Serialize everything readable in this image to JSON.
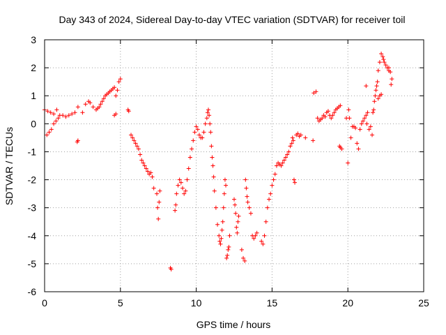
{
  "chart_data": {
    "type": "scatter",
    "title": "Day 343 of 2024, Sidereal Day-to-day VTEC variation (SDTVAR) for receiver toil",
    "xlabel": "GPS time / hours",
    "ylabel": "SDTVAR / TECUs",
    "xlim": [
      0,
      25
    ],
    "ylim": [
      -6,
      3
    ],
    "xticks": [
      "0",
      "5",
      "10",
      "15",
      "20",
      "25"
    ],
    "xtick_values": [
      0,
      5,
      10,
      15,
      20,
      25
    ],
    "yticks": [
      "-6",
      "-5",
      "-4",
      "-3",
      "-2",
      "-1",
      "0",
      "1",
      "2",
      "3"
    ],
    "ytick_values": [
      -6,
      -5,
      -4,
      -3,
      -2,
      -1,
      0,
      1,
      2,
      3
    ],
    "grid": true,
    "marker": "plus",
    "color": "#ff0000",
    "series": [
      {
        "name": "SDTVAR",
        "x": [
          0.0,
          0.2,
          0.4,
          0.6,
          0.8,
          0.15,
          0.3,
          0.45,
          0.6,
          0.75,
          0.9,
          1.0,
          1.2,
          1.4,
          1.6,
          1.8,
          2.0,
          2.2,
          2.5,
          2.7,
          2.9,
          3.0,
          3.2,
          3.4,
          3.5,
          3.6,
          3.7,
          3.8,
          3.9,
          4.0,
          4.1,
          4.2,
          4.3,
          4.4,
          4.5,
          4.6,
          4.7,
          4.8,
          4.9,
          5.0,
          4.6,
          4.7,
          2.2,
          2.15,
          5.5,
          5.55,
          5.7,
          5.8,
          5.9,
          6.0,
          6.1,
          6.2,
          6.3,
          6.4,
          6.5,
          6.6,
          6.7,
          6.8,
          6.9,
          7.0,
          7.1,
          7.2,
          7.4,
          7.45,
          7.5,
          7.55,
          7.6,
          8.3,
          8.35,
          8.6,
          8.65,
          8.7,
          8.8,
          8.9,
          9.0,
          9.1,
          9.2,
          9.3,
          9.4,
          9.5,
          9.6,
          9.7,
          9.8,
          9.9,
          10.0,
          10.1,
          10.2,
          10.3,
          10.4,
          10.5,
          10.6,
          10.7,
          10.75,
          10.8,
          10.85,
          10.9,
          10.95,
          11.0,
          11.05,
          11.1,
          11.15,
          11.2,
          11.3,
          11.4,
          11.5,
          11.55,
          11.6,
          11.65,
          11.7,
          11.75,
          11.8,
          11.85,
          11.9,
          11.95,
          12.0,
          12.05,
          12.1,
          12.15,
          12.2,
          12.5,
          12.55,
          12.6,
          12.65,
          12.7,
          12.75,
          12.8,
          13.0,
          13.1,
          13.2,
          13.25,
          13.3,
          13.35,
          13.4,
          13.5,
          13.6,
          13.7,
          13.8,
          13.9,
          14.0,
          14.3,
          14.4,
          14.5,
          14.6,
          14.7,
          14.8,
          14.9,
          15.0,
          15.1,
          15.2,
          15.3,
          15.4,
          15.5,
          15.6,
          15.7,
          15.8,
          15.9,
          16.0,
          16.1,
          16.2,
          16.3,
          16.4,
          16.35,
          16.45,
          16.5,
          16.6,
          16.7,
          16.8,
          16.9,
          17.2,
          17.7,
          17.75,
          17.9,
          18.0,
          18.1,
          18.2,
          18.3,
          18.4,
          18.5,
          18.6,
          18.7,
          18.8,
          18.9,
          19.0,
          19.1,
          19.2,
          19.3,
          19.4,
          19.5,
          19.45,
          19.5,
          19.6,
          19.9,
          20.0,
          20.05,
          20.1,
          20.2,
          20.3,
          20.4,
          20.5,
          20.6,
          20.7,
          20.8,
          20.9,
          21.0,
          21.1,
          21.2,
          21.3,
          21.5,
          21.6,
          21.65,
          21.7,
          21.75,
          21.8,
          21.85,
          21.9,
          21.95,
          22.0,
          22.1,
          22.2,
          22.3,
          22.35,
          22.4,
          22.5,
          22.6,
          22.7,
          22.8,
          22.85,
          22.9,
          22.7,
          21.2,
          21.25,
          21.4,
          22.0,
          22.1,
          22.2
        ],
        "y": [
          0.5,
          0.45,
          0.4,
          0.35,
          0.5,
          -0.4,
          -0.3,
          -0.2,
          0.0,
          0.1,
          0.2,
          0.3,
          0.3,
          0.25,
          0.3,
          0.35,
          0.4,
          0.6,
          0.4,
          0.7,
          0.8,
          0.75,
          0.6,
          0.5,
          0.55,
          0.6,
          0.7,
          0.8,
          0.9,
          1.0,
          1.05,
          1.1,
          1.15,
          1.2,
          1.25,
          1.3,
          1.0,
          1.2,
          1.5,
          1.6,
          0.3,
          0.35,
          -0.6,
          -0.65,
          0.5,
          0.45,
          -0.4,
          -0.5,
          -0.6,
          -0.7,
          -0.8,
          -0.9,
          -1.1,
          -1.3,
          -1.4,
          -1.5,
          -1.6,
          -1.7,
          -1.8,
          -1.75,
          -1.9,
          -2.3,
          -2.5,
          -3.0,
          -3.4,
          -2.8,
          -2.4,
          -5.15,
          -5.2,
          -3.1,
          -2.9,
          -2.5,
          -2.2,
          -2.0,
          -2.1,
          -2.3,
          -2.5,
          -2.4,
          -2.0,
          -1.6,
          -1.2,
          -0.9,
          -0.6,
          -0.3,
          -0.1,
          -0.2,
          -0.4,
          -0.5,
          -0.5,
          -0.3,
          0.0,
          0.2,
          0.4,
          0.5,
          0.3,
          0.0,
          -0.3,
          -0.8,
          -1.2,
          -1.5,
          -1.9,
          -2.4,
          -3.0,
          -3.6,
          -4.0,
          -4.2,
          -4.3,
          -4.1,
          -3.8,
          -3.5,
          -3.0,
          -2.5,
          -2.0,
          -2.2,
          -4.8,
          -4.7,
          -4.5,
          -4.4,
          -4.0,
          -2.7,
          -2.9,
          -3.2,
          -3.7,
          -3.9,
          -3.5,
          -3.3,
          -4.5,
          -4.8,
          -4.9,
          -2.0,
          -2.3,
          -2.6,
          -2.8,
          -3.0,
          -3.2,
          -4.0,
          -4.1,
          -4.0,
          -3.9,
          -4.2,
          -4.3,
          -4.0,
          -3.5,
          -3.0,
          -2.7,
          -2.5,
          -2.2,
          -2.0,
          -1.8,
          -1.5,
          -1.4,
          -1.45,
          -1.5,
          -1.4,
          -1.3,
          -1.2,
          -1.1,
          -1.0,
          -0.8,
          -0.7,
          -0.6,
          -0.5,
          -2.0,
          -2.1,
          -0.4,
          -0.35,
          -0.45,
          -0.4,
          -0.5,
          -0.6,
          1.1,
          1.15,
          0.2,
          0.1,
          0.15,
          0.2,
          0.3,
          0.25,
          0.4,
          0.45,
          0.3,
          0.2,
          0.3,
          0.4,
          0.5,
          0.55,
          0.6,
          0.65,
          -0.8,
          -0.85,
          -0.9,
          0.2,
          -1.4,
          0.5,
          0.2,
          -0.5,
          -0.1,
          -0.1,
          -0.15,
          -0.7,
          -0.9,
          -0.2,
          0.0,
          0.1,
          0.2,
          0.3,
          0.4,
          -0.1,
          -0.4,
          0.4,
          0.5,
          0.8,
          1.0,
          1.2,
          1.35,
          1.5,
          1.9,
          2.2,
          2.5,
          2.4,
          2.3,
          2.2,
          2.1,
          2.0,
          1.9,
          1.85,
          1.4,
          1.6,
          2.0,
          1.35,
          0.0,
          -0.2,
          0.9,
          1.0,
          1.05
        ]
      }
    ]
  }
}
